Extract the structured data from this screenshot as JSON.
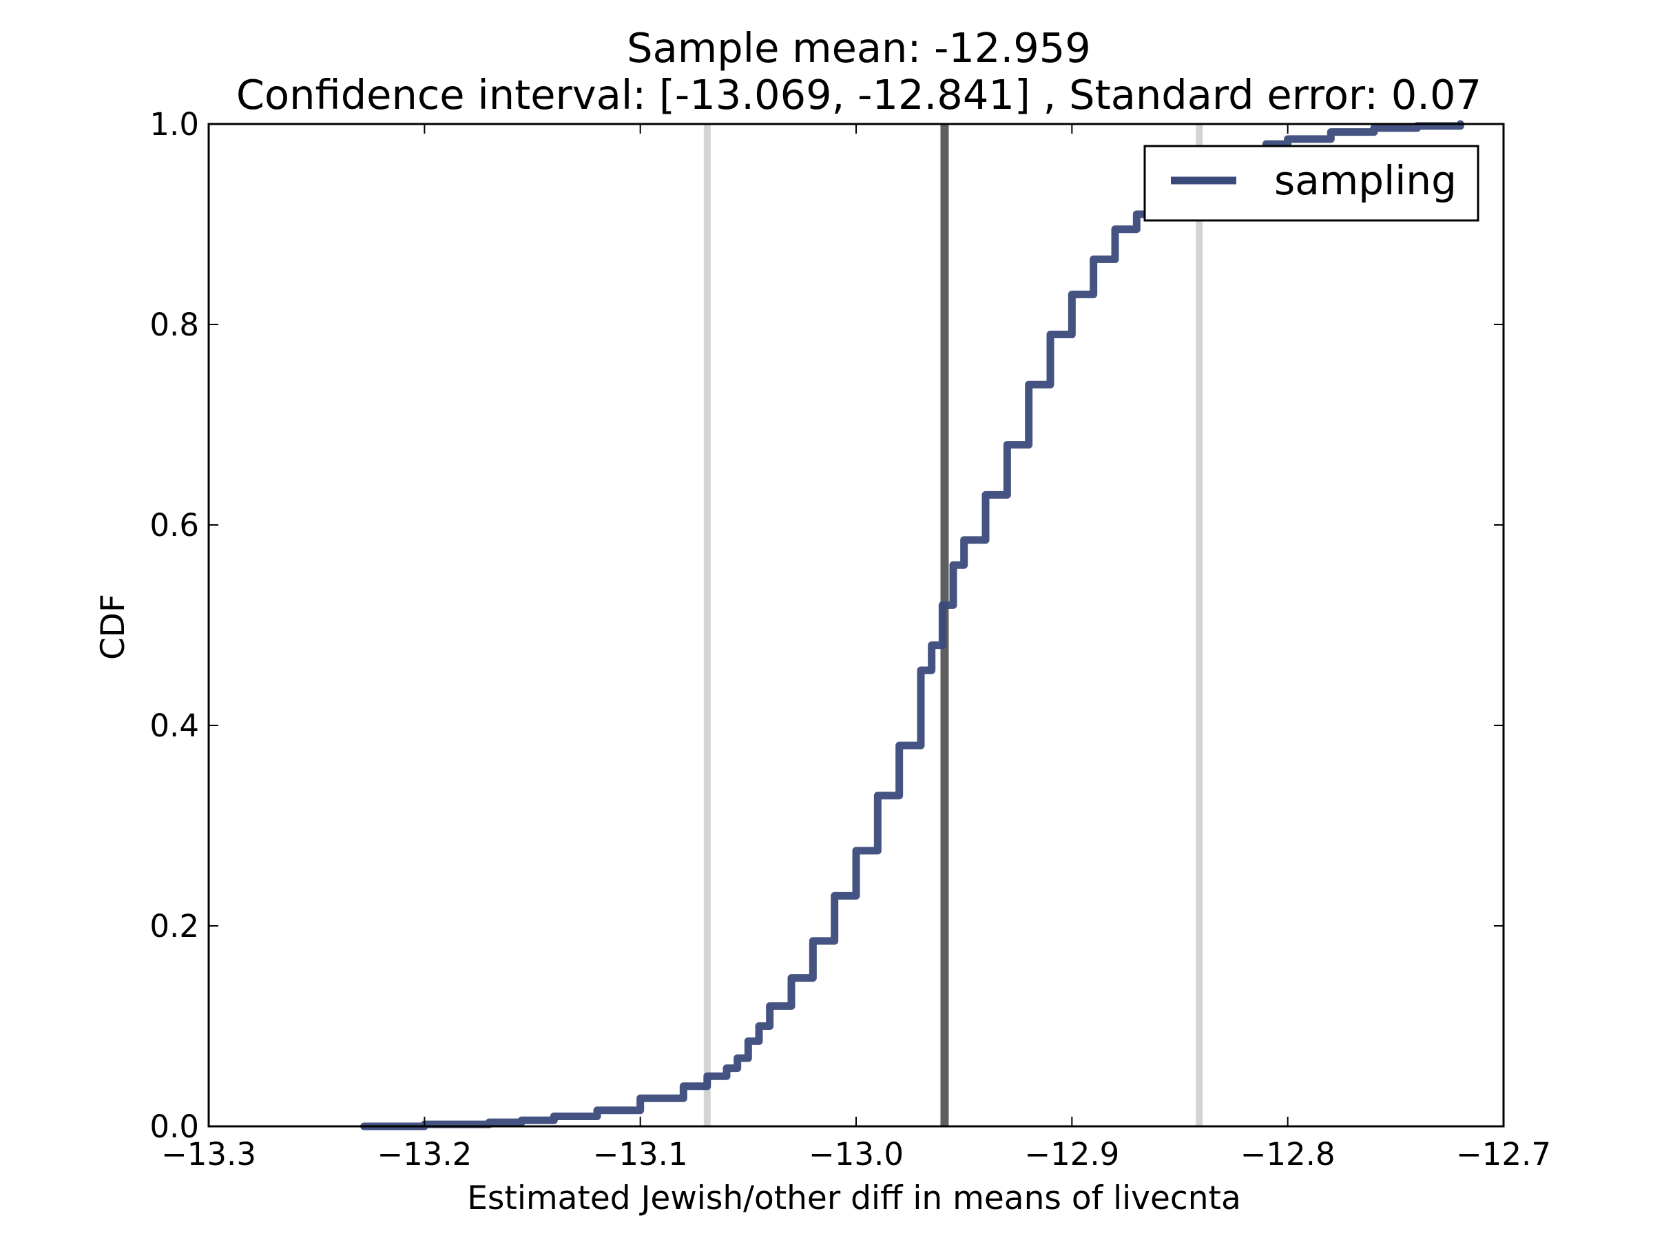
{
  "chart_data": {
    "type": "line",
    "title": "Sample mean: -12.959",
    "subtitle": "Confidence interval: [-13.069, -12.841] , Standard error: 0.07",
    "xlabel": "Estimated Jewish/other diff in means of livecnta",
    "ylabel": "CDF",
    "xlim": [
      -13.3,
      -12.7
    ],
    "ylim": [
      0.0,
      1.0
    ],
    "xticks": [
      -13.3,
      -13.2,
      -13.1,
      -13.0,
      -12.9,
      -12.8,
      -12.7
    ],
    "xtick_labels": [
      "−13.3",
      "−13.2",
      "−13.1",
      "−13.0",
      "−12.9",
      "−12.8",
      "−12.7"
    ],
    "yticks": [
      0.0,
      0.2,
      0.4,
      0.6,
      0.8,
      1.0
    ],
    "ytick_labels": [
      "0.0",
      "0.2",
      "0.4",
      "0.6",
      "0.8",
      "1.0"
    ],
    "grid": false,
    "legend_position": "upper-right",
    "series": [
      {
        "name": "sampling",
        "color": "#3a4a7a",
        "x": [
          -13.228,
          -13.2,
          -13.17,
          -13.155,
          -13.14,
          -13.12,
          -13.1,
          -13.08,
          -13.069,
          -13.06,
          -13.055,
          -13.05,
          -13.045,
          -13.04,
          -13.03,
          -13.02,
          -13.01,
          -13.0,
          -12.99,
          -12.98,
          -12.97,
          -12.965,
          -12.96,
          -12.955,
          -12.95,
          -12.94,
          -12.93,
          -12.92,
          -12.91,
          -12.9,
          -12.89,
          -12.88,
          -12.87,
          -12.86,
          -12.85,
          -12.84,
          -12.82,
          -12.81,
          -12.8,
          -12.78,
          -12.76,
          -12.74,
          -12.72
        ],
        "y": [
          0.0,
          0.002,
          0.004,
          0.006,
          0.01,
          0.016,
          0.028,
          0.04,
          0.05,
          0.058,
          0.068,
          0.085,
          0.1,
          0.12,
          0.148,
          0.185,
          0.23,
          0.275,
          0.33,
          0.38,
          0.455,
          0.48,
          0.52,
          0.56,
          0.585,
          0.63,
          0.68,
          0.74,
          0.79,
          0.83,
          0.865,
          0.895,
          0.91,
          0.925,
          0.94,
          0.95,
          0.97,
          0.98,
          0.985,
          0.992,
          0.996,
          0.998,
          1.0
        ]
      }
    ],
    "vlines": [
      {
        "x": -13.069,
        "color": "#d3d3d3",
        "role": "ci-lower"
      },
      {
        "x": -12.959,
        "color": "#5f5f5f",
        "role": "mean"
      },
      {
        "x": -12.841,
        "color": "#d3d3d3",
        "role": "ci-upper"
      }
    ]
  }
}
